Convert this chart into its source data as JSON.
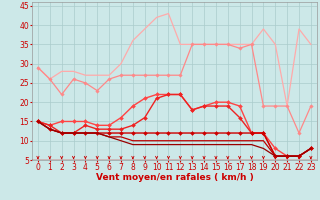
{
  "title": "",
  "xlabel": "Vent moyen/en rafales ( km/h )",
  "xlim": [
    -0.5,
    23.5
  ],
  "ylim": [
    5,
    46
  ],
  "yticks": [
    5,
    10,
    15,
    20,
    25,
    30,
    35,
    40,
    45
  ],
  "xticks": [
    0,
    1,
    2,
    3,
    4,
    5,
    6,
    7,
    8,
    9,
    10,
    11,
    12,
    13,
    14,
    15,
    16,
    17,
    18,
    19,
    20,
    21,
    22,
    23
  ],
  "bg_color": "#cce8e8",
  "grid_color": "#aacccc",
  "series": [
    {
      "color": "#ffaaaa",
      "alpha": 1.0,
      "linewidth": 0.9,
      "marker": null,
      "x": [
        0,
        1,
        2,
        3,
        4,
        5,
        6,
        7,
        8,
        9,
        10,
        11,
        12,
        13,
        14,
        15,
        16,
        17,
        18,
        19,
        20,
        21,
        22,
        23
      ],
      "y": [
        29,
        26,
        28,
        28,
        27,
        27,
        27,
        30,
        36,
        39,
        42,
        43,
        35,
        35,
        35,
        35,
        35,
        35,
        35,
        39,
        35,
        19,
        39,
        35
      ]
    },
    {
      "color": "#ff8888",
      "alpha": 1.0,
      "linewidth": 0.9,
      "marker": "D",
      "markersize": 1.8,
      "x": [
        0,
        1,
        2,
        3,
        4,
        5,
        6,
        7,
        8,
        9,
        10,
        11,
        12,
        13,
        14,
        15,
        16,
        17,
        18,
        19,
        20,
        21,
        22,
        23
      ],
      "y": [
        29,
        26,
        22,
        26,
        25,
        23,
        26,
        27,
        27,
        27,
        27,
        27,
        27,
        35,
        35,
        35,
        35,
        34,
        35,
        19,
        19,
        19,
        12,
        19
      ]
    },
    {
      "color": "#ff4444",
      "alpha": 1.0,
      "linewidth": 1.0,
      "marker": "D",
      "markersize": 2.0,
      "x": [
        0,
        1,
        2,
        3,
        4,
        5,
        6,
        7,
        8,
        9,
        10,
        11,
        12,
        13,
        14,
        15,
        16,
        17,
        18,
        19,
        20,
        21,
        22,
        23
      ],
      "y": [
        15,
        14,
        15,
        15,
        15,
        14,
        14,
        16,
        19,
        21,
        22,
        22,
        22,
        18,
        19,
        20,
        20,
        19,
        12,
        12,
        8,
        6,
        6,
        8
      ]
    },
    {
      "color": "#ee2222",
      "alpha": 1.0,
      "linewidth": 1.0,
      "marker": "D",
      "markersize": 2.0,
      "x": [
        0,
        1,
        2,
        3,
        4,
        5,
        6,
        7,
        8,
        9,
        10,
        11,
        12,
        13,
        14,
        15,
        16,
        17,
        18,
        19,
        20,
        21,
        22,
        23
      ],
      "y": [
        15,
        14,
        12,
        12,
        14,
        13,
        13,
        13,
        14,
        16,
        21,
        22,
        22,
        18,
        19,
        19,
        19,
        16,
        12,
        12,
        6,
        6,
        6,
        8
      ]
    },
    {
      "color": "#cc0000",
      "alpha": 1.0,
      "linewidth": 1.0,
      "marker": "D",
      "markersize": 2.0,
      "x": [
        0,
        1,
        2,
        3,
        4,
        5,
        6,
        7,
        8,
        9,
        10,
        11,
        12,
        13,
        14,
        15,
        16,
        17,
        18,
        19,
        20,
        21,
        22,
        23
      ],
      "y": [
        15,
        13,
        12,
        12,
        12,
        12,
        12,
        12,
        12,
        12,
        12,
        12,
        12,
        12,
        12,
        12,
        12,
        12,
        12,
        12,
        6,
        6,
        6,
        8
      ]
    },
    {
      "color": "#bb0000",
      "alpha": 1.0,
      "linewidth": 0.9,
      "marker": null,
      "x": [
        0,
        1,
        2,
        3,
        4,
        5,
        6,
        7,
        8,
        9,
        10,
        11,
        12,
        13,
        14,
        15,
        16,
        17,
        18,
        19,
        20,
        21,
        22,
        23
      ],
      "y": [
        15,
        13,
        12,
        12,
        12,
        12,
        11,
        11,
        10,
        10,
        10,
        10,
        10,
        10,
        10,
        10,
        10,
        10,
        10,
        10,
        6,
        6,
        6,
        8
      ]
    },
    {
      "color": "#990000",
      "alpha": 1.0,
      "linewidth": 0.9,
      "marker": null,
      "x": [
        0,
        1,
        2,
        3,
        4,
        5,
        6,
        7,
        8,
        9,
        10,
        11,
        12,
        13,
        14,
        15,
        16,
        17,
        18,
        19,
        20,
        21,
        22,
        23
      ],
      "y": [
        15,
        13,
        12,
        12,
        12,
        12,
        11,
        10,
        9,
        9,
        9,
        9,
        9,
        9,
        9,
        9,
        9,
        9,
        9,
        8,
        6,
        6,
        6,
        8
      ]
    }
  ],
  "arrow_color": "#cc0000",
  "xlabel_color": "#cc0000",
  "xlabel_fontsize": 6.5,
  "tick_fontsize": 5.5,
  "tick_color": "#cc0000"
}
